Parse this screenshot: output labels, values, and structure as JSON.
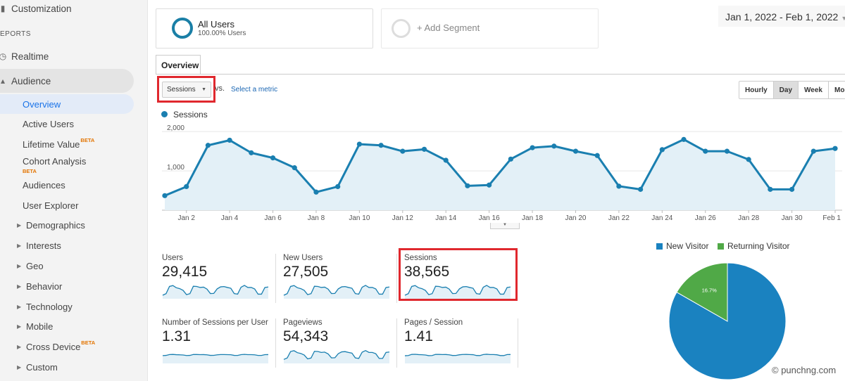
{
  "sidebar": {
    "customization": "Customization",
    "reports_section": "EPORTS",
    "realtime": "Realtime",
    "audience": "Audience",
    "overview": "Overview",
    "active_users": "Active Users",
    "lifetime_value": "Lifetime Value",
    "cohort_analysis": "Cohort Analysis",
    "beta": "BETA",
    "audiences": "Audiences",
    "user_explorer": "User Explorer",
    "demographics": "Demographics",
    "interests": "Interests",
    "geo": "Geo",
    "behavior": "Behavior",
    "technology": "Technology",
    "mobile": "Mobile",
    "cross_device": "Cross Device",
    "custom": "Custom"
  },
  "segments": {
    "all_users_title": "All Users",
    "all_users_sub": "100.00% Users",
    "add_segment": "+ Add Segment"
  },
  "date_range": "Jan 1, 2022 - Feb 1, 2022",
  "tab_overview": "Overview",
  "metric_selector": {
    "value": "Sessions",
    "vs": "vs.",
    "select_metric": "Select a metric"
  },
  "granularity": [
    "Hourly",
    "Day",
    "Week",
    "Month"
  ],
  "granularity_selected": "Day",
  "colors": {
    "accent": "#1a7fb0",
    "fill": "#e3f0f7",
    "new_visitor": "#1a82c0",
    "returning_visitor": "#50a947",
    "highlight": "#e0282e"
  },
  "chart_data": [
    {
      "type": "area",
      "legend": "Sessions",
      "y_ticks": [
        "2,000",
        "1,000"
      ],
      "ylim": [
        0,
        2200
      ],
      "x_tick_labels": [
        "Jan 2",
        "Jan 4",
        "Jan 6",
        "Jan 8",
        "Jan 10",
        "Jan 12",
        "Jan 14",
        "Jan 16",
        "Jan 18",
        "Jan 20",
        "Jan 22",
        "Jan 24",
        "Jan 26",
        "Jan 28",
        "Jan 30",
        "Feb 1"
      ],
      "x": [
        "Jan 1",
        "Jan 2",
        "Jan 3",
        "Jan 4",
        "Jan 5",
        "Jan 6",
        "Jan 7",
        "Jan 8",
        "Jan 9",
        "Jan 10",
        "Jan 11",
        "Jan 12",
        "Jan 13",
        "Jan 14",
        "Jan 15",
        "Jan 16",
        "Jan 17",
        "Jan 18",
        "Jan 19",
        "Jan 20",
        "Jan 21",
        "Jan 22",
        "Jan 23",
        "Jan 24",
        "Jan 25",
        "Jan 26",
        "Jan 27",
        "Jan 28",
        "Jan 29",
        "Jan 30",
        "Jan 31",
        "Feb 1"
      ],
      "values": [
        370,
        600,
        1650,
        1780,
        1460,
        1330,
        1080,
        460,
        600,
        1680,
        1650,
        1500,
        1550,
        1270,
        620,
        640,
        1300,
        1590,
        1630,
        1500,
        1390,
        610,
        530,
        1540,
        1800,
        1500,
        1500,
        1290,
        530,
        530,
        1500,
        1570
      ]
    },
    {
      "type": "pie",
      "legend": [
        "New Visitor",
        "Returning Visitor"
      ],
      "values": [
        83.3,
        16.7
      ],
      "labels": [
        "83.3%",
        "16.7%"
      ]
    }
  ],
  "scorecards": [
    {
      "label": "Users",
      "value": "29,415"
    },
    {
      "label": "New Users",
      "value": "27,505"
    },
    {
      "label": "Sessions",
      "value": "38,565"
    },
    {
      "label": "Number of Sessions per User",
      "value": "1.31"
    },
    {
      "label": "Pageviews",
      "value": "54,343"
    },
    {
      "label": "Pages / Session",
      "value": "1.41"
    }
  ],
  "watermark": "© punchng.com"
}
